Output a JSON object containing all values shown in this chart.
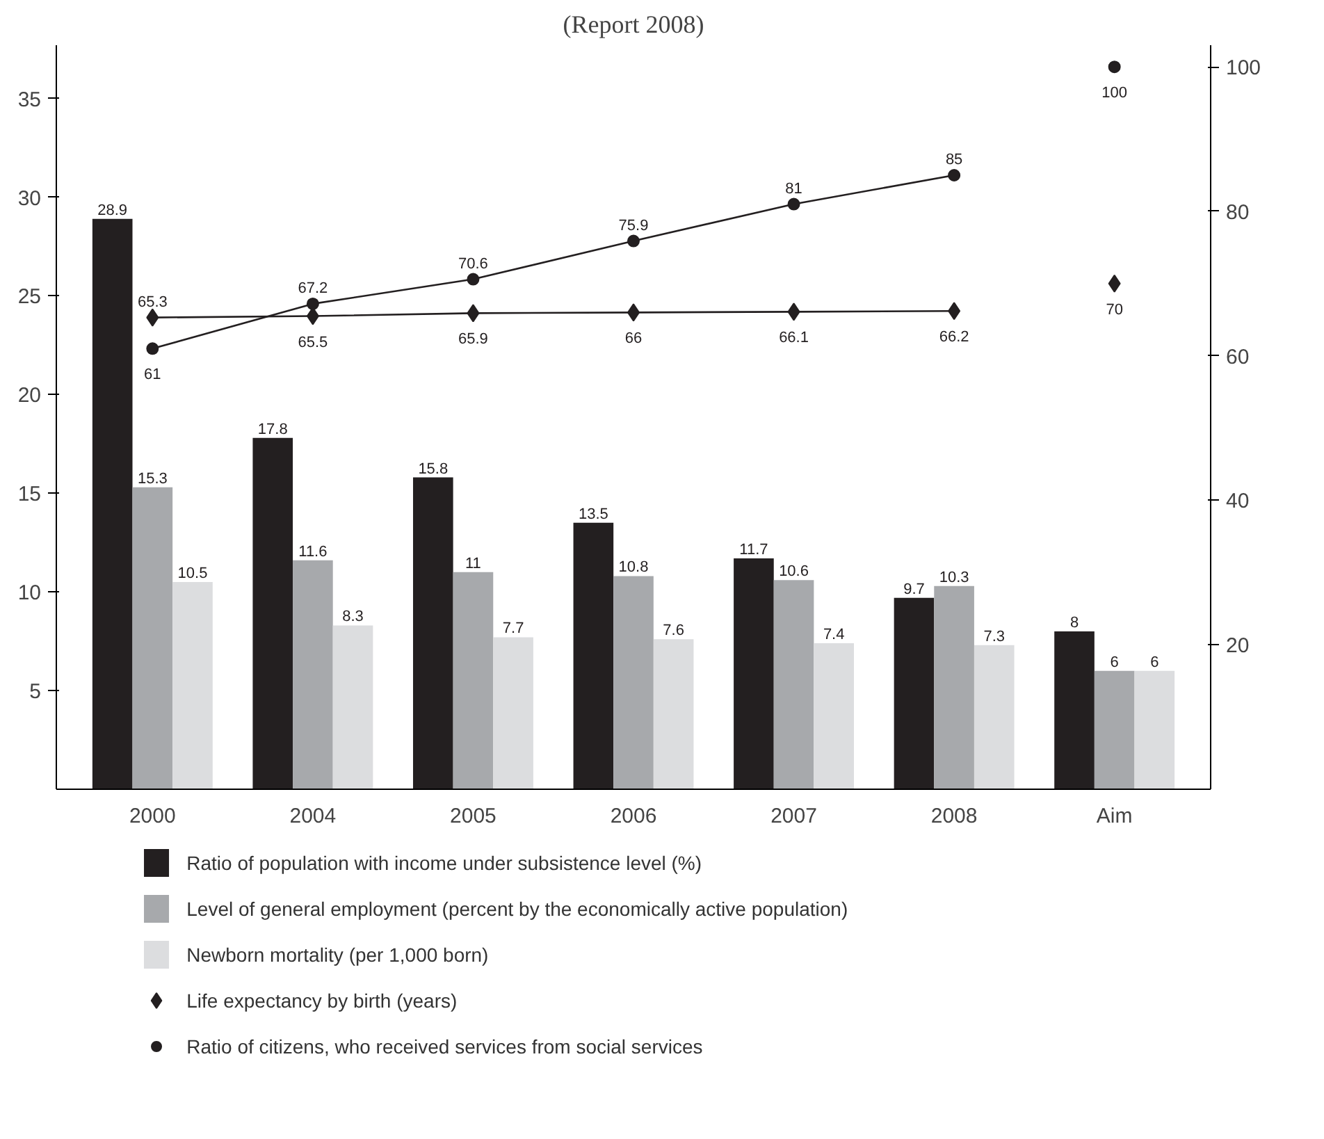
{
  "chart_data": {
    "type": "bar",
    "title": "(Report 2008)",
    "categories": [
      "2000",
      "2004",
      "2005",
      "2006",
      "2007",
      "2008",
      "Aim"
    ],
    "ylim": [
      0,
      37.7
    ],
    "yticks": [
      5,
      10,
      15,
      20,
      25,
      30,
      35
    ],
    "y2lim": [
      0,
      103
    ],
    "y2ticks": [
      20,
      40,
      60,
      80,
      100
    ],
    "data_labels": true,
    "legend": "bottom",
    "grid": false,
    "series": [
      {
        "name": "Ratio of population with income under subsistence level (%)",
        "color": "#231f20",
        "values": [
          28.9,
          17.8,
          15.8,
          13.5,
          11.7,
          9.7,
          8
        ]
      },
      {
        "name": "Level of general employment (percent by the economically active population)",
        "color": "#a7a9ac",
        "values": [
          15.3,
          11.6,
          11,
          10.8,
          10.6,
          10.3,
          6
        ]
      },
      {
        "name": "Newborn mortality (per 1,000 born)",
        "color": "#dcdddf",
        "values": [
          10.5,
          8.3,
          7.7,
          7.6,
          7.4,
          7.3,
          6
        ]
      },
      {
        "name": "Life expectancy by birth (years)",
        "type": "line",
        "axis": "y2",
        "marker": "diamond",
        "color": "#231f20",
        "values": [
          65.3,
          65.5,
          65.9,
          66,
          66.1,
          66.2,
          null
        ]
      },
      {
        "type": "scatter",
        "axis": "y2",
        "marker": "diamond",
        "color": "#231f20",
        "values": [
          null,
          null,
          null,
          null,
          null,
          null,
          70
        ]
      },
      {
        "name": "Ratio of citizens, who received services from social services",
        "type": "line",
        "axis": "y2",
        "marker": "circle",
        "color": "#231f20",
        "values": [
          61,
          67.2,
          70.6,
          75.9,
          81,
          85,
          null
        ]
      },
      {
        "type": "scatter",
        "axis": "y2",
        "marker": "circle",
        "color": "#231f20",
        "values": [
          null,
          null,
          null,
          null,
          null,
          null,
          100
        ]
      }
    ]
  }
}
